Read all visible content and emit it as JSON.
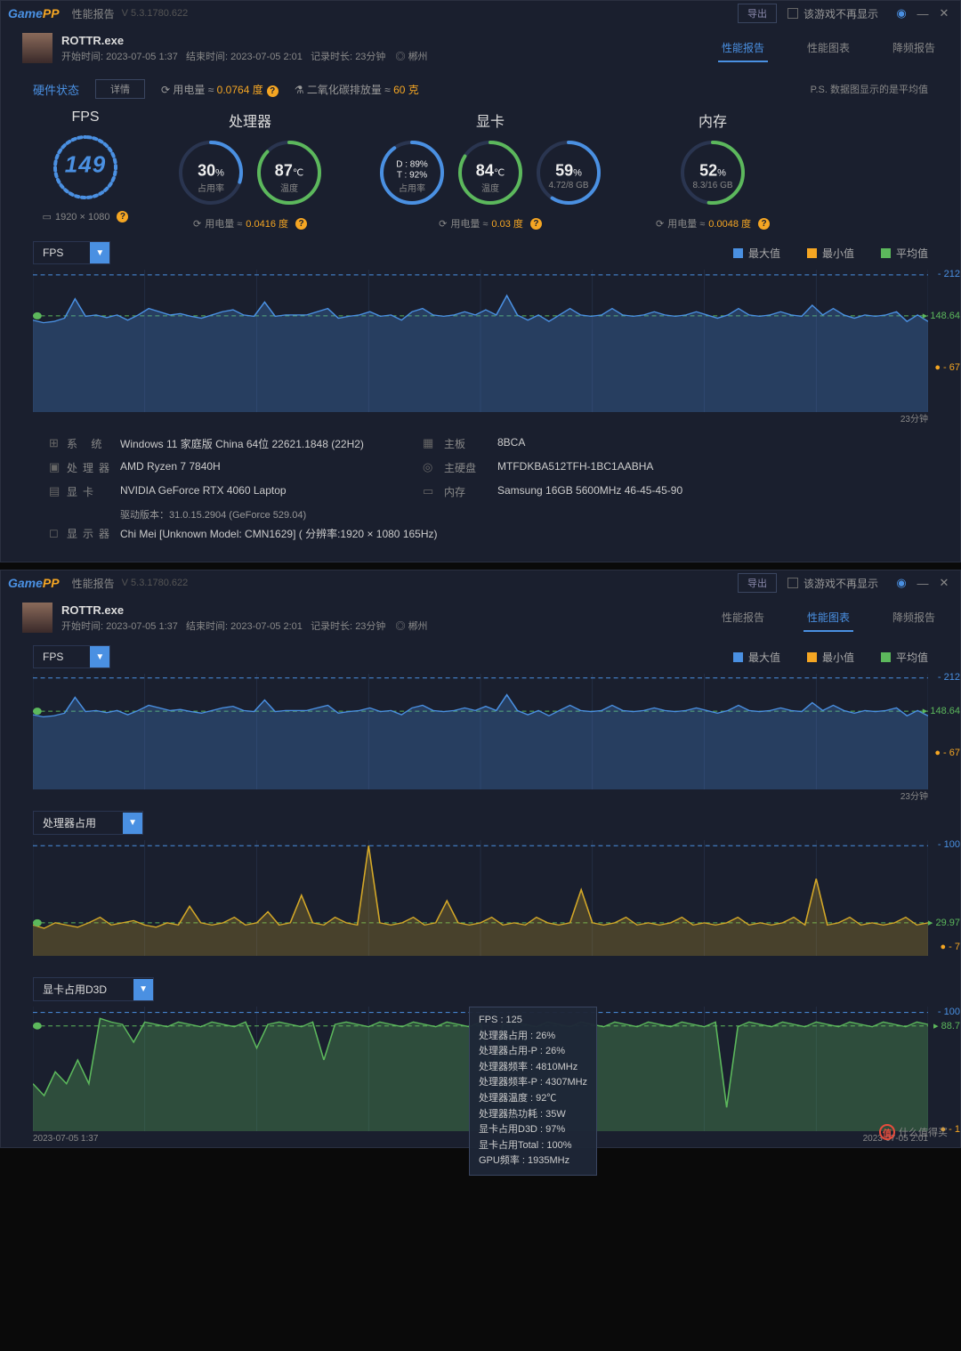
{
  "app": {
    "logo_a": "Game",
    "logo_b": "PP",
    "title": "性能报告",
    "version": "V 5.3.1780.622",
    "export_btn": "导出",
    "hide_check": "该游戏不再显示"
  },
  "game": {
    "exe": "ROTTR.exe",
    "start_label": "开始时间:",
    "start": "2023-07-05 1:37",
    "end_label": "结束时间:",
    "end": "2023-07-05 2:01",
    "dur_label": "记录时长:",
    "dur": "23分钟",
    "location": "郴州"
  },
  "tabs": {
    "t1": "性能报告",
    "t2": "性能图表",
    "t3": "降频报告"
  },
  "hw_row": {
    "status": "硬件状态",
    "detail": "详情",
    "power_label": "用电量 ≈",
    "power_val": "0.0764 度",
    "co2_label": "二氧化碳排放量 ≈",
    "co2_val": "60 克",
    "ps": "P.S. 数据图显示的是平均值"
  },
  "gauges": {
    "fps": {
      "title": "FPS",
      "value": "149",
      "pct": 75,
      "color": "#4a90e2",
      "foot_res": "1920 × 1080"
    },
    "cpu": {
      "title": "处理器",
      "usage": {
        "val": "30",
        "unit": "%",
        "sub": "占用率",
        "pct": 30,
        "color": "#4a90e2"
      },
      "temp": {
        "val": "87",
        "unit": "℃",
        "sub": "温度",
        "pct": 87,
        "color": "#5cb85c"
      },
      "foot_label": "用电量 ≈",
      "foot_val": "0.0416 度"
    },
    "gpu": {
      "title": "显卡",
      "info": {
        "line1": "D : 89%",
        "line2": "T : 92%",
        "sub": "占用率",
        "pct": 90,
        "color": "#4a90e2"
      },
      "temp": {
        "val": "84",
        "unit": "℃",
        "sub": "温度",
        "pct": 84,
        "color": "#5cb85c"
      },
      "vram": {
        "val": "59",
        "unit": "%",
        "sub": "4.72/8 GB",
        "pct": 59,
        "color": "#4a90e2"
      },
      "foot_label": "用电量 ≈",
      "foot_val": "0.03 度"
    },
    "mem": {
      "title": "内存",
      "usage": {
        "val": "52",
        "unit": "%",
        "sub": "8.3/16 GB",
        "pct": 52,
        "color": "#5cb85c"
      },
      "foot_label": "用电量 ≈",
      "foot_val": "0.0048 度"
    }
  },
  "legend": {
    "max": "最大值",
    "min": "最小值",
    "avg": "平均值",
    "color_max": "#4a90e2",
    "color_min": "#f5a623",
    "color_avg": "#5cb85c"
  },
  "chart_fps": {
    "selector": "FPS",
    "max": 212,
    "min": 67,
    "avg": 148.64,
    "duration": "23分钟",
    "color": "#4a90e2",
    "fill": "rgba(74,144,226,0.28)",
    "grid": "#2a3550",
    "axis_text": "#888",
    "ylim": [
      0,
      220
    ],
    "data": [
      142,
      138,
      140,
      145,
      175,
      148,
      150,
      146,
      150,
      142,
      150,
      160,
      155,
      150,
      152,
      148,
      145,
      150,
      155,
      158,
      150,
      148,
      170,
      148,
      150,
      150,
      150,
      155,
      160,
      145,
      148,
      150,
      155,
      148,
      150,
      142,
      155,
      160,
      150,
      148,
      150,
      155,
      150,
      158,
      150,
      180,
      150,
      142,
      150,
      140,
      150,
      160,
      150,
      148,
      150,
      160,
      150,
      148,
      150,
      155,
      150,
      148,
      150,
      155,
      150,
      145,
      150,
      160,
      150,
      148,
      150,
      155,
      150,
      148,
      165,
      150,
      160,
      150,
      145,
      150,
      148,
      150,
      155,
      140,
      150,
      140
    ]
  },
  "sys": {
    "os_l": "系 统",
    "os": "Windows 11 家庭版 China 64位 22621.1848 (22H2)",
    "mb_l": "主板",
    "mb": "8BCA",
    "cpu_l": "处理器",
    "cpu": "AMD Ryzen 7 7840H",
    "disk_l": "主硬盘",
    "disk": "MTFDKBA512TFH-1BC1AABHA",
    "gpu_l": "显卡",
    "gpu": "NVIDIA GeForce RTX 4060 Laptop",
    "gpu_drv": "驱动版本：31.0.15.2904 (GeForce 529.04)",
    "mem_l": "内存",
    "mem": "Samsung 16GB 5600MHz 46-45-45-90",
    "mon_l": "显示器",
    "mon": "Chi Mei [Unknown Model: CMN1629] ( 分辨率:1920 × 1080 165Hz)"
  },
  "panel2": {
    "active_tab": "性能图表",
    "chart_cpu": {
      "selector": "处理器占用",
      "max": 100,
      "min": 7,
      "avg": 29.97,
      "color": "#d4a828",
      "fill": "rgba(212,168,40,0.25)",
      "ylim": [
        0,
        105
      ],
      "data": [
        28,
        25,
        30,
        28,
        26,
        30,
        35,
        28,
        30,
        32,
        28,
        26,
        30,
        28,
        45,
        30,
        28,
        30,
        35,
        28,
        30,
        40,
        28,
        30,
        55,
        30,
        28,
        35,
        30,
        28,
        100,
        30,
        28,
        30,
        35,
        28,
        30,
        50,
        30,
        28,
        30,
        35,
        28,
        30,
        28,
        35,
        30,
        28,
        30,
        60,
        30,
        28,
        30,
        35,
        28,
        30,
        28,
        30,
        35,
        28,
        30,
        28,
        30,
        35,
        28,
        30,
        28,
        30,
        35,
        28,
        70,
        28,
        30,
        35,
        28,
        30,
        28,
        30,
        35,
        28,
        30
      ]
    },
    "chart_gpu": {
      "selector": "显卡占用D3D",
      "max": 100,
      "min": 1,
      "avg": 88.7,
      "color": "#5cb85c",
      "fill": "rgba(92,184,92,0.3)",
      "ylim": [
        0,
        105
      ],
      "time_start": "2023-07-05 1:37",
      "time_end": "2023-07-05 2:01",
      "data": [
        40,
        30,
        50,
        40,
        60,
        40,
        95,
        92,
        90,
        75,
        92,
        90,
        88,
        92,
        90,
        88,
        92,
        90,
        88,
        92,
        70,
        90,
        92,
        90,
        88,
        92,
        60,
        90,
        92,
        90,
        88,
        92,
        90,
        88,
        92,
        90,
        88,
        92,
        90,
        88,
        92,
        50,
        90,
        92,
        90,
        88,
        92,
        90,
        88,
        92,
        90,
        88,
        92,
        90,
        88,
        92,
        90,
        88,
        92,
        90,
        88,
        92,
        20,
        88,
        92,
        90,
        88,
        92,
        90,
        88,
        92,
        90,
        88,
        92,
        90,
        88,
        92,
        90,
        88,
        92,
        90
      ]
    },
    "tooltip": {
      "l1": "FPS : 125",
      "l2": "处理器占用 : 26%",
      "l3": "处理器占用-P : 26%",
      "l4": "处理器频率 : 4810MHz",
      "l5": "处理器频率-P : 4307MHz",
      "l6": "处理器温度 : 92℃",
      "l7": "处理器热功耗 : 35W",
      "l8": "显卡占用D3D : 97%",
      "l9": "显卡占用Total : 100%",
      "l10": "GPU频率 : 1935MHz"
    }
  },
  "watermark": "什么值得买"
}
